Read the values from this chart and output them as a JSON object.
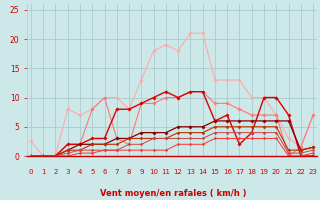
{
  "xlabel": "Vent moyen/en rafales ( km/h )",
  "ylim": [
    0,
    26
  ],
  "xlim": [
    -0.3,
    23.3
  ],
  "yticks": [
    0,
    5,
    10,
    15,
    20,
    25
  ],
  "xticks": [
    0,
    1,
    2,
    3,
    4,
    5,
    6,
    7,
    8,
    9,
    10,
    11,
    12,
    13,
    14,
    15,
    16,
    17,
    18,
    19,
    20,
    21,
    22,
    23
  ],
  "background_color": "#cce8e8",
  "grid_color": "#aacccc",
  "series": [
    {
      "x": [
        0,
        1,
        2,
        3,
        4,
        5,
        6,
        7,
        8,
        9,
        10,
        11,
        12,
        13,
        14,
        15,
        16,
        17,
        18,
        19,
        20,
        21,
        22,
        23
      ],
      "y": [
        2.5,
        0,
        0,
        8,
        7,
        8,
        10,
        10,
        8,
        13,
        18,
        19,
        18,
        21,
        21,
        13,
        13,
        13,
        10,
        10,
        7,
        3,
        1.5,
        7
      ],
      "color": "#ffaaaa",
      "lw": 0.8,
      "marker": "D",
      "ms": 1.8
    },
    {
      "x": [
        0,
        1,
        2,
        3,
        4,
        5,
        6,
        7,
        8,
        9,
        10,
        11,
        12,
        13,
        14,
        15,
        16,
        17,
        18,
        19,
        20,
        21,
        22,
        23
      ],
      "y": [
        0,
        0,
        0,
        2,
        2,
        8,
        10,
        3,
        2,
        9,
        9,
        10,
        10,
        11,
        11,
        9,
        9,
        8,
        7,
        7,
        7,
        0,
        1.5,
        7
      ],
      "color": "#ff7777",
      "lw": 0.8,
      "marker": "D",
      "ms": 1.8
    },
    {
      "x": [
        0,
        1,
        2,
        3,
        4,
        5,
        6,
        7,
        8,
        9,
        10,
        11,
        12,
        13,
        14,
        15,
        16,
        17,
        18,
        19,
        20,
        21,
        22,
        23
      ],
      "y": [
        0,
        0,
        0,
        2,
        2,
        3,
        3,
        8,
        8,
        9,
        10,
        11,
        10,
        11,
        11,
        6,
        7,
        2,
        4,
        10,
        10,
        7,
        0,
        0
      ],
      "color": "#dd0000",
      "lw": 1.0,
      "marker": "D",
      "ms": 1.8
    },
    {
      "x": [
        0,
        1,
        2,
        3,
        4,
        5,
        6,
        7,
        8,
        9,
        10,
        11,
        12,
        13,
        14,
        15,
        16,
        17,
        18,
        19,
        20,
        21,
        22,
        23
      ],
      "y": [
        0,
        0,
        0,
        1,
        2,
        2,
        2,
        3,
        3,
        4,
        4,
        4,
        5,
        5,
        5,
        6,
        6,
        6,
        6,
        6,
        6,
        6,
        1,
        1.5
      ],
      "color": "#880000",
      "lw": 0.9,
      "marker": "D",
      "ms": 1.8
    },
    {
      "x": [
        0,
        1,
        2,
        3,
        4,
        5,
        6,
        7,
        8,
        9,
        10,
        11,
        12,
        13,
        14,
        15,
        16,
        17,
        18,
        19,
        20,
        21,
        22,
        23
      ],
      "y": [
        0,
        0,
        0,
        1,
        1,
        2,
        2,
        2,
        3,
        3,
        3,
        3,
        4,
        4,
        4,
        5,
        5,
        5,
        5,
        5,
        5,
        1,
        1,
        1.5
      ],
      "color": "#bb3300",
      "lw": 0.8,
      "marker": "D",
      "ms": 1.6
    },
    {
      "x": [
        0,
        1,
        2,
        3,
        4,
        5,
        6,
        7,
        8,
        9,
        10,
        11,
        12,
        13,
        14,
        15,
        16,
        17,
        18,
        19,
        20,
        21,
        22,
        23
      ],
      "y": [
        0,
        0,
        0,
        0.5,
        1,
        1,
        1,
        1,
        2,
        2,
        3,
        3,
        3,
        3,
        3,
        4,
        4,
        4,
        4,
        4,
        4,
        0.5,
        0.5,
        1
      ],
      "color": "#cc4444",
      "lw": 0.7,
      "marker": "D",
      "ms": 1.5
    },
    {
      "x": [
        0,
        1,
        2,
        3,
        4,
        5,
        6,
        7,
        8,
        9,
        10,
        11,
        12,
        13,
        14,
        15,
        16,
        17,
        18,
        19,
        20,
        21,
        22,
        23
      ],
      "y": [
        0,
        0,
        0,
        0,
        0.5,
        0.5,
        1,
        1,
        1,
        1,
        1,
        1,
        2,
        2,
        2,
        3,
        3,
        3,
        3,
        3,
        3,
        0,
        0,
        0.5
      ],
      "color": "#ff3333",
      "lw": 0.7,
      "marker": "D",
      "ms": 1.5
    }
  ],
  "arrow_color": "#cc0000",
  "xlabel_color": "#cc0000",
  "tick_color": "#cc0000",
  "xlabel_fontsize": 6.0,
  "tick_fontsize": 5.0,
  "ytick_fontsize": 5.5
}
